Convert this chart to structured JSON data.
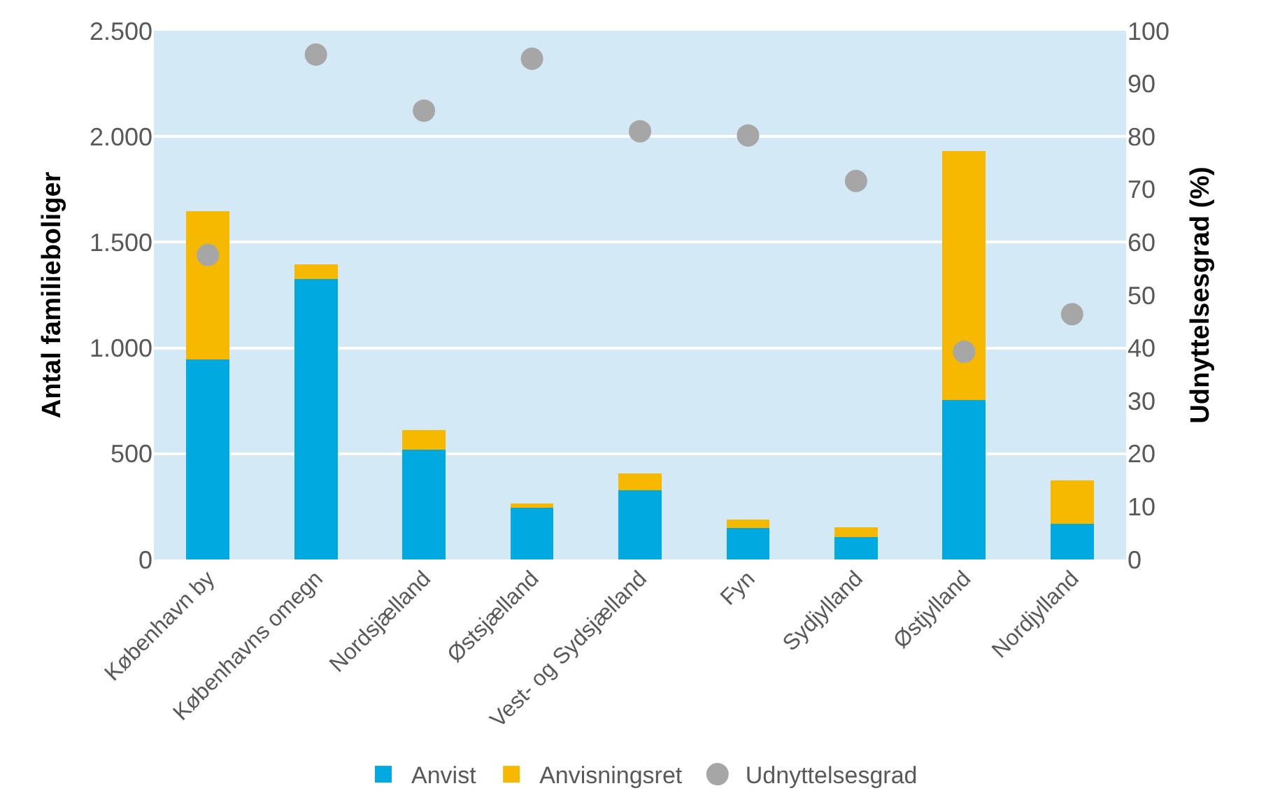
{
  "chart_data": {
    "type": "bar",
    "stacked": true,
    "categories": [
      "København by",
      "Københavns omegn",
      "Nordsjælland",
      "Østsjælland",
      "Vest- og Sydsjælland",
      "Fyn",
      "Sydjylland",
      "Østjylland",
      "Nordjylland"
    ],
    "ylabel": "Antal familieboliger",
    "y2label": "Udnyttelsesgrad (%)",
    "ylim": [
      0,
      2500
    ],
    "yticks": [
      {
        "value": 0,
        "label": "0"
      },
      {
        "value": 500,
        "label": "500"
      },
      {
        "value": 1000,
        "label": "1.000"
      },
      {
        "value": 1500,
        "label": "1.500"
      },
      {
        "value": 2000,
        "label": "2.000"
      },
      {
        "value": 2500,
        "label": "2.500"
      }
    ],
    "y2lim": [
      0,
      100
    ],
    "y2ticks": [
      0,
      10,
      20,
      30,
      40,
      50,
      60,
      70,
      80,
      90,
      100
    ],
    "grid": "y",
    "legend": "bottom",
    "series": [
      {
        "name": "Anvist",
        "color": "#00a9e0",
        "values": [
          945,
          1325,
          518,
          244,
          326,
          148,
          106,
          755,
          168
        ]
      },
      {
        "name": "Anvisningsret",
        "color": "#f7b900",
        "values": [
          703,
          69,
          94,
          20,
          81,
          42,
          47,
          1175,
          207
        ]
      },
      {
        "name": "Udnyttelsesgrad",
        "type": "scatter",
        "axis": "y2",
        "marker": "circle",
        "color": "#a6a6a6",
        "values": [
          57.6,
          95.5,
          84.9,
          94.7,
          81.0,
          80.2,
          71.6,
          39.3,
          46.4
        ]
      }
    ]
  }
}
